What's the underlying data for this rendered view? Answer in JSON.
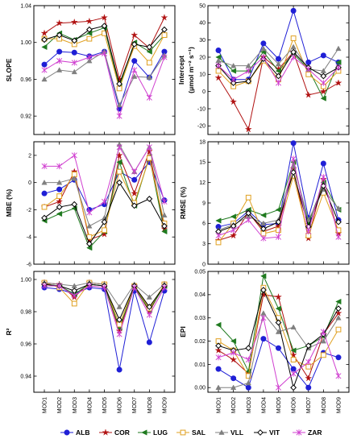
{
  "chart_data": [
    {
      "type": "line",
      "panel": "slope",
      "ylabel": "SLOPE",
      "ylim": [
        0.9,
        1.04
      ],
      "yticks": [
        0.92,
        0.96,
        1.0,
        1.04
      ],
      "ytick_labels": [
        "0.92",
        "0.96",
        "1.00",
        "1.04"
      ],
      "x": [
        "MOD1",
        "MOD2",
        "MOD3",
        "MOD4",
        "MOD5",
        "MOD6",
        "MOD7",
        "MOD8",
        "MOD9"
      ],
      "series": [
        {
          "name": "ALB",
          "values": [
            0.976,
            0.99,
            0.989,
            0.985,
            0.99,
            0.928,
            0.98,
            0.962,
            0.99
          ]
        },
        {
          "name": "COR",
          "values": [
            1.01,
            1.021,
            1.022,
            1.023,
            1.027,
            0.96,
            1.008,
            0.994,
            1.027
          ]
        },
        {
          "name": "LUG",
          "values": [
            0.995,
            1.01,
            1.003,
            1.01,
            1.016,
            0.952,
            1.0,
            0.99,
            1.008
          ]
        },
        {
          "name": "SAL",
          "values": [
            1.004,
            1.004,
            0.998,
            1.004,
            1.01,
            0.95,
            0.996,
            0.978,
            1.008
          ]
        },
        {
          "name": "VLL",
          "values": [
            0.96,
            0.97,
            0.968,
            0.98,
            0.99,
            0.932,
            0.963,
            0.962,
            0.986
          ]
        },
        {
          "name": "VIT",
          "values": [
            1.003,
            1.008,
            1.002,
            1.014,
            1.018,
            0.955,
            0.998,
            0.995,
            1.014
          ]
        },
        {
          "name": "ZAR",
          "values": [
            0.97,
            0.98,
            0.978,
            0.984,
            0.988,
            0.92,
            0.97,
            0.94,
            0.984
          ]
        }
      ]
    },
    {
      "type": "line",
      "panel": "intercept",
      "ylabel": "Intercept",
      "ylabel_unit": "(μmol m⁻² s⁻¹)",
      "ylim": [
        -25,
        50
      ],
      "yticks": [
        -20,
        -10,
        0,
        10,
        20,
        30,
        40,
        50
      ],
      "ytick_labels": [
        "-20",
        "-10",
        "0",
        "10",
        "20",
        "30",
        "40",
        "50"
      ],
      "x": [
        "MOD1",
        "MOD2",
        "MOD3",
        "MOD4",
        "MOD5",
        "MOD6",
        "MOD7",
        "MOD8",
        "MOD9"
      ],
      "series": [
        {
          "name": "ALB",
          "values": [
            24,
            7,
            7,
            28,
            19,
            47,
            17,
            21,
            17
          ]
        },
        {
          "name": "COR",
          "values": [
            8,
            -6,
            -22,
            20,
            13,
            23,
            -2,
            0,
            5
          ]
        },
        {
          "name": "LUG",
          "values": [
            20,
            12,
            12,
            23,
            12,
            22,
            13,
            -4,
            17
          ]
        },
        {
          "name": "SAL",
          "values": [
            12,
            3,
            6,
            18,
            7,
            31,
            10,
            3,
            12
          ]
        },
        {
          "name": "VLL",
          "values": [
            18,
            15,
            15,
            25,
            16,
            26,
            13,
            12,
            25
          ]
        },
        {
          "name": "VIT",
          "values": [
            15,
            5,
            6,
            19,
            9,
            23,
            14,
            9,
            14
          ]
        },
        {
          "name": "ZAR",
          "values": [
            15,
            7,
            12,
            20,
            5,
            20,
            13,
            5,
            14
          ]
        }
      ]
    },
    {
      "type": "line",
      "panel": "mbe",
      "ylabel": "MBE (%)",
      "ylim": [
        -6,
        3
      ],
      "yticks": [
        -6,
        -4,
        -2,
        0,
        2
      ],
      "ytick_labels": [
        "-6",
        "-4",
        "-2",
        "0",
        "2"
      ],
      "x": [
        "MOD1",
        "MOD2",
        "MOD3",
        "MOD4",
        "MOD5",
        "MOD6",
        "MOD7",
        "MOD8",
        "MOD9"
      ],
      "series": [
        {
          "name": "ALB",
          "values": [
            -0.8,
            -0.5,
            0.2,
            -2.0,
            -1.6,
            0.8,
            0.2,
            1.5,
            -1.3
          ]
        },
        {
          "name": "COR",
          "values": [
            -1.8,
            -1.4,
            0.8,
            -4.2,
            -3.8,
            2.0,
            -0.8,
            2.3,
            -3.4
          ]
        },
        {
          "name": "LUG",
          "values": [
            -2.8,
            -2.3,
            -1.9,
            -4.8,
            -3.6,
            1.5,
            -1.7,
            1.9,
            -3.6
          ]
        },
        {
          "name": "SAL",
          "values": [
            -1.8,
            -1.0,
            0.6,
            -4.0,
            -3.5,
            0.8,
            -1.5,
            1.8,
            -3.0
          ]
        },
        {
          "name": "VLL",
          "values": [
            0.0,
            0.0,
            0.3,
            -3.2,
            -2.6,
            2.8,
            0.8,
            2.6,
            -2.4
          ]
        },
        {
          "name": "VIT",
          "values": [
            -2.6,
            -1.8,
            -1.6,
            -4.5,
            -2.9,
            0.0,
            -1.7,
            -1.2,
            -3.2
          ]
        },
        {
          "name": "ZAR",
          "values": [
            1.2,
            1.2,
            2.0,
            -2.2,
            -1.4,
            2.6,
            0.8,
            2.6,
            -1.4
          ]
        }
      ]
    },
    {
      "type": "line",
      "panel": "rmse",
      "ylabel": "RMSE (%)",
      "ylim": [
        0,
        18
      ],
      "yticks": [
        0,
        3,
        6,
        9,
        12,
        15,
        18
      ],
      "ytick_labels": [
        "0",
        "3",
        "6",
        "9",
        "12",
        "15",
        "18"
      ],
      "x": [
        "MOD1",
        "MOD2",
        "MOD3",
        "MOD4",
        "MOD5",
        "MOD6",
        "MOD7",
        "MOD8",
        "MOD9"
      ],
      "series": [
        {
          "name": "ALB",
          "values": [
            5.5,
            6.0,
            7.8,
            5.8,
            6.0,
            17.8,
            6.8,
            14.8,
            6.5
          ]
        },
        {
          "name": "COR",
          "values": [
            3.5,
            4.2,
            7.6,
            4.8,
            5.6,
            14.0,
            3.8,
            12.5,
            4.5
          ]
        },
        {
          "name": "LUG",
          "values": [
            6.4,
            7.0,
            8.0,
            7.2,
            8.0,
            15.0,
            6.0,
            12.0,
            8.0
          ]
        },
        {
          "name": "SAL",
          "values": [
            3.2,
            6.0,
            9.8,
            4.5,
            5.0,
            13.0,
            4.2,
            10.5,
            5.0
          ]
        },
        {
          "name": "VLL",
          "values": [
            5.0,
            5.8,
            7.0,
            6.0,
            6.5,
            14.5,
            6.5,
            11.0,
            8.2
          ]
        },
        {
          "name": "VIT",
          "values": [
            4.8,
            5.6,
            7.5,
            5.2,
            6.2,
            13.5,
            5.5,
            11.5,
            6.2
          ]
        },
        {
          "name": "ZAR",
          "values": [
            4.2,
            5.0,
            6.5,
            3.8,
            4.0,
            15.5,
            4.8,
            12.8,
            4.0
          ]
        }
      ]
    },
    {
      "type": "line",
      "panel": "r2",
      "ylabel": "R²",
      "ylim": [
        0.93,
        1.005
      ],
      "yticks": [
        0.94,
        0.96,
        0.98,
        1.0
      ],
      "ytick_labels": [
        "0.94",
        "0.96",
        "0.98",
        "1.00"
      ],
      "x": [
        "MOD1",
        "MOD2",
        "MOD3",
        "MOD4",
        "MOD5",
        "MOD6",
        "MOD7",
        "MOD8",
        "MOD9"
      ],
      "series": [
        {
          "name": "ALB",
          "values": [
            0.995,
            0.994,
            0.991,
            0.995,
            0.994,
            0.944,
            0.993,
            0.961,
            0.993
          ]
        },
        {
          "name": "COR",
          "values": [
            0.998,
            0.997,
            0.989,
            0.998,
            0.997,
            0.968,
            0.996,
            0.98,
            0.997
          ]
        },
        {
          "name": "LUG",
          "values": [
            0.997,
            0.996,
            0.991,
            0.997,
            0.996,
            0.97,
            0.995,
            0.981,
            0.996
          ]
        },
        {
          "name": "SAL",
          "values": [
            0.998,
            0.995,
            0.985,
            0.998,
            0.997,
            0.972,
            0.996,
            0.982,
            0.997
          ]
        },
        {
          "name": "VLL",
          "values": [
            0.998,
            0.997,
            0.996,
            0.998,
            0.997,
            0.983,
            0.997,
            0.989,
            0.997
          ]
        },
        {
          "name": "VIT",
          "values": [
            0.997,
            0.996,
            0.993,
            0.997,
            0.996,
            0.975,
            0.996,
            0.983,
            0.996
          ]
        },
        {
          "name": "ZAR",
          "values": [
            0.996,
            0.996,
            0.99,
            0.996,
            0.995,
            0.966,
            0.995,
            0.978,
            0.995
          ]
        }
      ]
    },
    {
      "type": "line",
      "panel": "epi",
      "ylabel": "EPI",
      "ylim": [
        -0.002,
        0.05
      ],
      "yticks": [
        0.0,
        0.01,
        0.02,
        0.03,
        0.04,
        0.05
      ],
      "ytick_labels": [
        "0.00",
        "0.01",
        "0.02",
        "0.03",
        "0.04",
        "0.05"
      ],
      "x": [
        "MOD1",
        "MOD2",
        "MOD3",
        "MOD4",
        "MOD5",
        "MOD6",
        "MOD7",
        "MOD8",
        "MOD9"
      ],
      "series": [
        {
          "name": "ALB",
          "values": [
            0.008,
            0.004,
            0.0,
            0.021,
            0.017,
            0.008,
            0.0,
            0.015,
            0.013
          ]
        },
        {
          "name": "COR",
          "values": [
            0.016,
            0.012,
            0.006,
            0.04,
            0.039,
            0.014,
            0.004,
            0.023,
            0.032
          ]
        },
        {
          "name": "LUG",
          "values": [
            0.027,
            0.02,
            0.007,
            0.048,
            0.034,
            0.016,
            0.018,
            0.022,
            0.037
          ]
        },
        {
          "name": "SAL",
          "values": [
            0.02,
            0.016,
            0.005,
            0.043,
            0.03,
            0.012,
            0.009,
            0.014,
            0.025
          ]
        },
        {
          "name": "VLL",
          "values": [
            0.0,
            0.0,
            0.002,
            0.032,
            0.024,
            0.026,
            0.017,
            0.02,
            0.03
          ]
        },
        {
          "name": "VIT",
          "values": [
            0.018,
            0.016,
            0.017,
            0.042,
            0.028,
            0.0,
            0.018,
            0.023,
            0.034
          ]
        },
        {
          "name": "ZAR",
          "values": [
            0.013,
            0.015,
            0.012,
            0.03,
            0.0,
            0.006,
            0.011,
            0.024,
            0.005
          ]
        }
      ]
    }
  ],
  "legend": {
    "placement": "bottom",
    "items": [
      {
        "name": "ALB",
        "color": "#1f1fd6",
        "marker": "circle-filled"
      },
      {
        "name": "COR",
        "color": "#b01010",
        "marker": "star"
      },
      {
        "name": "LUG",
        "color": "#1f7a1f",
        "marker": "triangle-left"
      },
      {
        "name": "SAL",
        "color": "#e0a020",
        "marker": "square-open"
      },
      {
        "name": "VLL",
        "color": "#808080",
        "marker": "triangle-up"
      },
      {
        "name": "VIT",
        "color": "#000000",
        "marker": "diamond-open"
      },
      {
        "name": "ZAR",
        "color": "#d040d0",
        "marker": "x"
      }
    ]
  }
}
